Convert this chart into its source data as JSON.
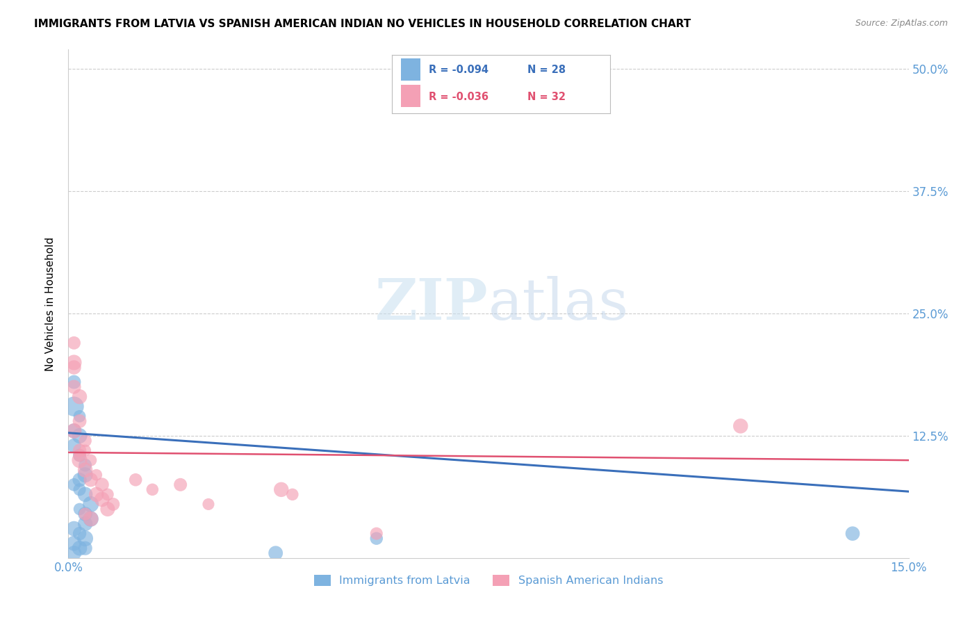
{
  "title": "IMMIGRANTS FROM LATVIA VS SPANISH AMERICAN INDIAN NO VEHICLES IN HOUSEHOLD CORRELATION CHART",
  "source": "Source: ZipAtlas.com",
  "ylabel_label": "No Vehicles in Household",
  "xlim": [
    0.0,
    0.15
  ],
  "ylim": [
    0.0,
    0.52
  ],
  "xticks": [
    0.0,
    0.05,
    0.1,
    0.15
  ],
  "xticklabels": [
    "0.0%",
    "",
    "",
    "15.0%"
  ],
  "yticks_right": [
    0.0,
    0.125,
    0.25,
    0.375,
    0.5
  ],
  "ytick_right_labels": [
    "",
    "12.5%",
    "25.0%",
    "37.5%",
    "50.0%"
  ],
  "grid_color": "#cccccc",
  "background_color": "#ffffff",
  "blue_color": "#7eb3e0",
  "pink_color": "#f4a0b5",
  "blue_line_color": "#3a6fba",
  "pink_line_color": "#e05070",
  "legend_R1": "R = -0.094",
  "legend_N1": "N = 28",
  "legend_R2": "R = -0.036",
  "legend_N2": "N = 32",
  "legend_label1": "Immigrants from Latvia",
  "legend_label2": "Spanish American Indians",
  "watermark_zip": "ZIP",
  "watermark_atlas": "atlas",
  "title_fontsize": 11,
  "source_fontsize": 9,
  "tick_label_color": "#5b9bd5",
  "blue_x": [
    0.001,
    0.002,
    0.001,
    0.002,
    0.001,
    0.002,
    0.003,
    0.003,
    0.001,
    0.002,
    0.003,
    0.004,
    0.002,
    0.003,
    0.004,
    0.003,
    0.001,
    0.002,
    0.003,
    0.001,
    0.037,
    0.055,
    0.001,
    0.002,
    0.002,
    0.003,
    0.001,
    0.14
  ],
  "blue_y": [
    0.155,
    0.145,
    0.13,
    0.125,
    0.115,
    0.105,
    0.095,
    0.085,
    0.075,
    0.07,
    0.065,
    0.055,
    0.05,
    0.045,
    0.04,
    0.035,
    0.03,
    0.025,
    0.02,
    0.015,
    0.005,
    0.02,
    0.18,
    0.01,
    0.08,
    0.01,
    0.005,
    0.025
  ],
  "pink_x": [
    0.001,
    0.001,
    0.002,
    0.002,
    0.001,
    0.003,
    0.003,
    0.002,
    0.004,
    0.003,
    0.005,
    0.004,
    0.006,
    0.005,
    0.007,
    0.006,
    0.008,
    0.007,
    0.003,
    0.004,
    0.012,
    0.015,
    0.02,
    0.025,
    0.038,
    0.04,
    0.001,
    0.001,
    0.002,
    0.002,
    0.12,
    0.055
  ],
  "pink_y": [
    0.195,
    0.175,
    0.165,
    0.14,
    0.13,
    0.12,
    0.11,
    0.105,
    0.1,
    0.09,
    0.085,
    0.08,
    0.075,
    0.065,
    0.065,
    0.06,
    0.055,
    0.05,
    0.045,
    0.04,
    0.08,
    0.07,
    0.075,
    0.055,
    0.07,
    0.065,
    0.22,
    0.2,
    0.1,
    0.11,
    0.135,
    0.025
  ],
  "blue_line_x0": 0.0,
  "blue_line_y0": 0.128,
  "blue_line_x1": 0.15,
  "blue_line_y1": 0.068,
  "pink_line_x0": 0.0,
  "pink_line_y0": 0.108,
  "pink_line_x1": 0.15,
  "pink_line_y1": 0.1
}
